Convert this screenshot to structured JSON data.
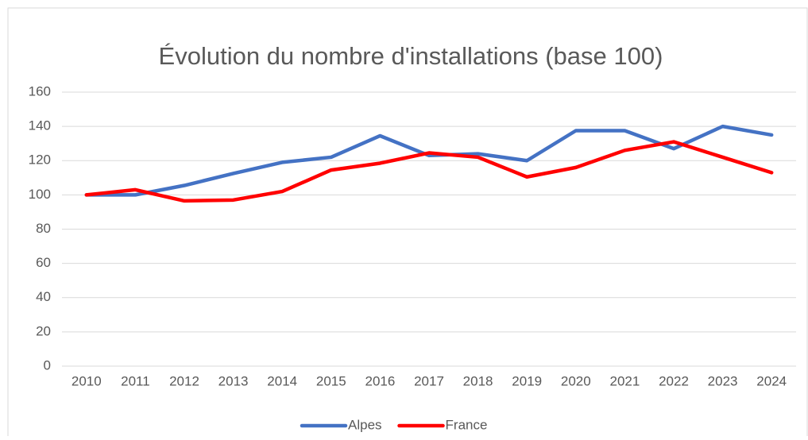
{
  "chart_data": {
    "type": "line",
    "title": "Évolution du nombre d'installations (base 100)",
    "categories": [
      "2010",
      "2011",
      "2012",
      "2013",
      "2014",
      "2015",
      "2016",
      "2017",
      "2018",
      "2019",
      "2020",
      "2021",
      "2022",
      "2023",
      "2024"
    ],
    "series": [
      {
        "name": "Alpes",
        "color": "#4472c4",
        "values": [
          100,
          100,
          105.5,
          112.5,
          119,
          122,
          134.5,
          123,
          124,
          120,
          137.5,
          137.5,
          127,
          140,
          135
        ]
      },
      {
        "name": "France",
        "color": "#ff0000",
        "values": [
          100,
          103,
          96.5,
          97,
          102,
          114.5,
          118.5,
          124.5,
          122,
          110.5,
          116,
          126,
          131,
          122,
          113
        ]
      }
    ],
    "ylim": [
      0,
      160
    ],
    "yticks": [
      0,
      20,
      40,
      60,
      80,
      100,
      120,
      140,
      160
    ],
    "grid": true,
    "legend": "bottom"
  }
}
